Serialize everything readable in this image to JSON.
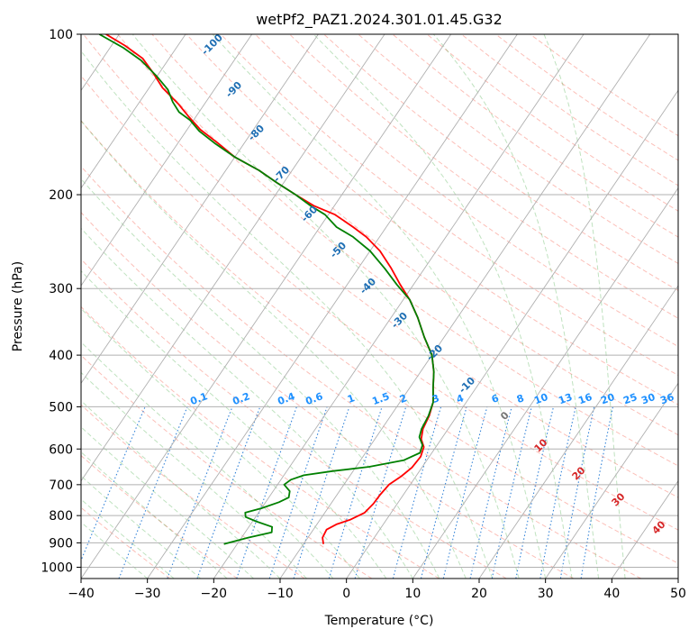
{
  "chart_data": {
    "type": "line",
    "title": "wetPf2_PAZ1.2024.301.01.45.G32",
    "xlabel": "Temperature (°C)",
    "ylabel": "Pressure (hPa)",
    "xlim": [
      -40,
      50
    ],
    "ylim": [
      1050,
      100
    ],
    "y_scale": "log",
    "x_ticks": [
      -40,
      -30,
      -20,
      -10,
      0,
      10,
      20,
      30,
      40,
      50
    ],
    "y_ticks": [
      100,
      200,
      300,
      400,
      500,
      600,
      700,
      800,
      900,
      1000
    ],
    "grid": true,
    "skew": true,
    "dry_adiabat_labels": [
      "-100",
      "-90",
      "-80",
      "-70",
      "-60",
      "-50",
      "-40",
      "-30",
      "-20",
      "-10"
    ],
    "moist_adiabat_labels": [
      "0",
      "10",
      "20",
      "30",
      "40"
    ],
    "mixing_ratio_labels": [
      "0.1",
      "0.2",
      "0.4",
      "0.6",
      "1",
      "1.5",
      "2",
      "3",
      "4",
      "6",
      "8",
      "10",
      "13",
      "16",
      "20",
      "25",
      "30",
      "36"
    ],
    "series": [
      {
        "color": "#ff0000",
        "points": [
          [
            -7.0,
            905
          ],
          [
            -7.8,
            880
          ],
          [
            -8.0,
            850
          ],
          [
            -7.0,
            830
          ],
          [
            -5.5,
            815
          ],
          [
            -4.0,
            790
          ],
          [
            -3.6,
            760
          ],
          [
            -3.5,
            730
          ],
          [
            -3.2,
            700
          ],
          [
            -2.2,
            675
          ],
          [
            -1.5,
            650
          ],
          [
            -1.3,
            620
          ],
          [
            -1.8,
            595
          ],
          [
            -3.0,
            575
          ],
          [
            -3.8,
            550
          ],
          [
            -4.2,
            520
          ],
          [
            -5.0,
            490
          ],
          [
            -6.5,
            460
          ],
          [
            -8.0,
            430
          ],
          [
            -10.0,
            400
          ],
          [
            -13.0,
            370
          ],
          [
            -16.0,
            340
          ],
          [
            -19.0,
            315
          ],
          [
            -22.0,
            295
          ],
          [
            -25.0,
            275
          ],
          [
            -28.5,
            255
          ],
          [
            -32.0,
            240
          ],
          [
            -35.0,
            230
          ],
          [
            -39.0,
            218
          ],
          [
            -43.0,
            210
          ],
          [
            -47.0,
            200
          ],
          [
            -51.0,
            190
          ],
          [
            -55.0,
            180
          ],
          [
            -60.0,
            170
          ],
          [
            -64.0,
            160
          ],
          [
            -68.0,
            151
          ],
          [
            -71.0,
            143
          ],
          [
            -74.0,
            135
          ],
          [
            -78.0,
            126
          ],
          [
            -81.0,
            118
          ],
          [
            -84.0,
            111
          ],
          [
            -88.0,
            105
          ],
          [
            -92.0,
            100
          ]
        ]
      },
      {
        "color": "#008000",
        "points": [
          [
            -22.0,
            905
          ],
          [
            -19.0,
            880
          ],
          [
            -16.0,
            860
          ],
          [
            -16.5,
            840
          ],
          [
            -19.5,
            820
          ],
          [
            -21.5,
            805
          ],
          [
            -22.0,
            790
          ],
          [
            -20.0,
            775
          ],
          [
            -18.0,
            755
          ],
          [
            -17.0,
            740
          ],
          [
            -17.5,
            720
          ],
          [
            -19.0,
            700
          ],
          [
            -18.5,
            685
          ],
          [
            -17.0,
            672
          ],
          [
            -13.0,
            660
          ],
          [
            -8.0,
            648
          ],
          [
            -3.5,
            630
          ],
          [
            -1.8,
            610
          ],
          [
            -2.2,
            590
          ],
          [
            -3.5,
            570
          ],
          [
            -4.0,
            550
          ],
          [
            -4.3,
            520
          ],
          [
            -5.0,
            490
          ],
          [
            -6.5,
            460
          ],
          [
            -8.0,
            430
          ],
          [
            -10.0,
            400
          ],
          [
            -13.0,
            370
          ],
          [
            -16.0,
            340
          ],
          [
            -19.0,
            315
          ],
          [
            -22.5,
            295
          ],
          [
            -26.0,
            275
          ],
          [
            -30.0,
            255
          ],
          [
            -34.0,
            240
          ],
          [
            -37.5,
            230
          ],
          [
            -40.5,
            218
          ],
          [
            -43.5,
            210
          ],
          [
            -47.0,
            200
          ],
          [
            -51.0,
            190
          ],
          [
            -55.0,
            180
          ],
          [
            -60.0,
            170
          ],
          [
            -64.5,
            160
          ],
          [
            -68.0,
            152
          ],
          [
            -70.5,
            145
          ],
          [
            -73.0,
            140
          ],
          [
            -75.0,
            134
          ],
          [
            -77.0,
            127
          ],
          [
            -80.0,
            120
          ],
          [
            -84.0,
            112
          ],
          [
            -88.0,
            106
          ],
          [
            -93.0,
            100
          ]
        ]
      }
    ]
  }
}
